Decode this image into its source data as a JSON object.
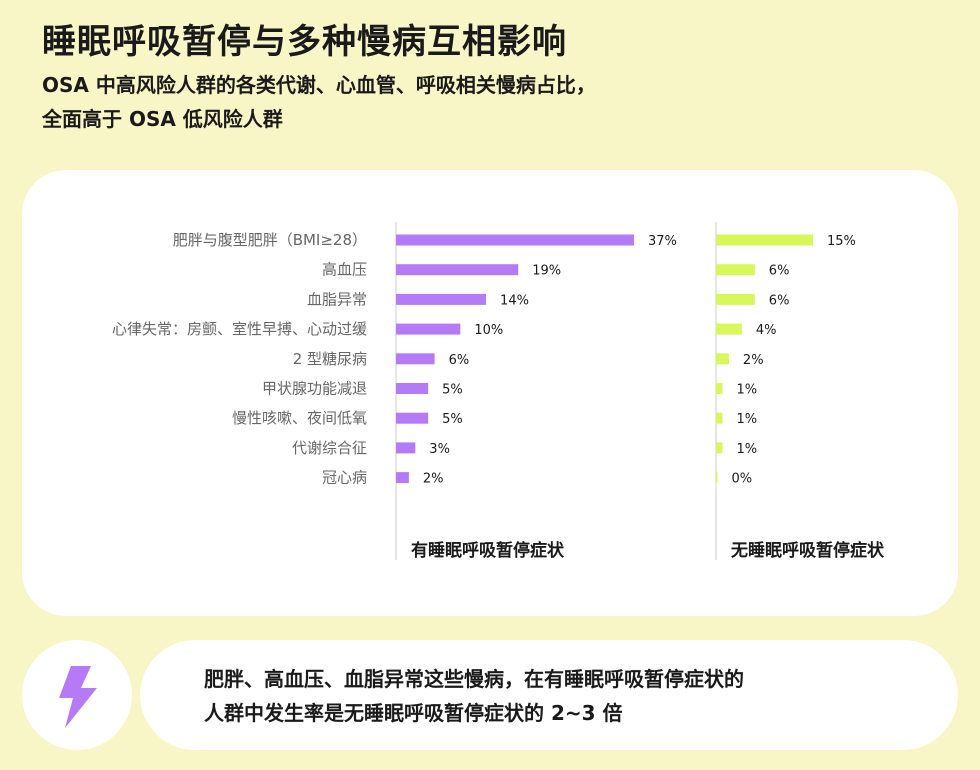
{
  "title": "睡眠呼吸暂停与多种慢病互相影响",
  "subtitle_line1": "OSA 中高风险人群的各类代谢、心血管、呼吸相关慢病占比，",
  "subtitle_line2": "全面高于 OSA 低风险人群",
  "footer_line1": "肥胖、高血压、血脂异常这些慢病，在有睡眠呼吸暂停症状的",
  "footer_line2": "人群中发生率是无睡眠呼吸暂停症状的 2~3 倍",
  "icon": "lightning-bolt-icon",
  "colors": {
    "background": "#f8f6c6",
    "with_symptoms": "#b57bf7",
    "without_symptoms": "#d8f75a",
    "icon": "#b57bf7"
  },
  "chart_data": {
    "type": "bar",
    "orientation": "horizontal",
    "categories": [
      "肥胖与腹型肥胖（BMI≥28）",
      "高血压",
      "血脂异常",
      "心律失常：房颤、室性早搏、心动过缓",
      "2 型糖尿病",
      "甲状腺功能减退",
      "慢性咳嗽、夜间低氧",
      "代谢综合征",
      "冠心病"
    ],
    "series": [
      {
        "name": "有睡眠呼吸暂停症状",
        "values": [
          37,
          19,
          14,
          10,
          6,
          5,
          5,
          3,
          2
        ],
        "labels": [
          "37%",
          "19%",
          "14%",
          "10%",
          "6%",
          "5%",
          "5%",
          "3%",
          "2%"
        ]
      },
      {
        "name": "无睡眠呼吸暂停症状",
        "values": [
          15,
          6,
          6,
          4,
          2,
          1,
          1,
          1,
          0
        ],
        "labels": [
          "15%",
          "6%",
          "6%",
          "4%",
          "2%",
          "1%",
          "1%",
          "1%",
          "0%"
        ]
      }
    ],
    "value_unit": "%",
    "grid": false,
    "legend": "below each panel"
  }
}
